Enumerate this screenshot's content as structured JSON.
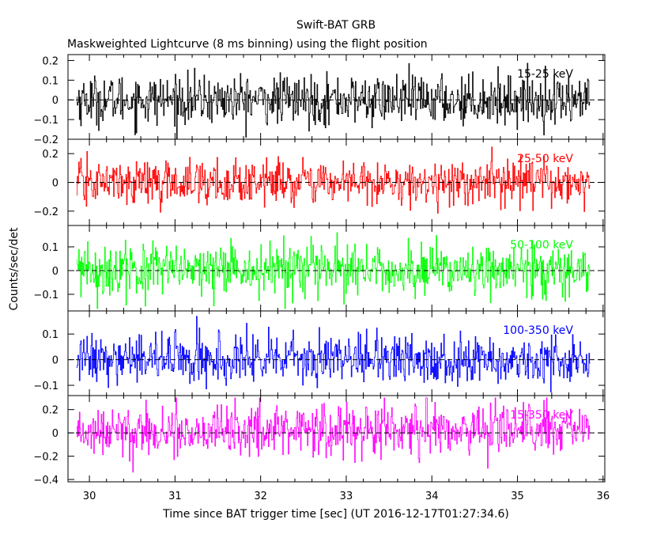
{
  "chart_data": {
    "type": "line",
    "title": "Swift-BAT GRB",
    "subtitle": "Maskweighted Lightcurve (8 ms binning) using the flight position",
    "xlabel": "Time since BAT trigger time [sec] (UT 2016-12-17T01:27:34.6)",
    "ylabel": "Counts/sec/det",
    "xlim": [
      29.75,
      36.02
    ],
    "x_ticks": [
      "30",
      "31",
      "32",
      "33",
      "34",
      "35",
      "36"
    ],
    "bin_width_s": 0.008,
    "x_range_data": [
      29.85,
      35.85
    ],
    "grid": false,
    "zero_line": "dashed",
    "panels": [
      {
        "label": "15-25 keV",
        "color": "#000000",
        "ylim": [
          -0.2,
          0.23
        ],
        "y_ticks": [
          "0.2",
          "0.1",
          "0",
          "−0.1",
          "−0.2"
        ],
        "y_tick_values": [
          0.2,
          0.1,
          0,
          -0.1,
          -0.2
        ],
        "mean": 0.0,
        "sigma": 0.062,
        "approx_min": -0.2,
        "approx_max": 0.22
      },
      {
        "label": "25-50 keV",
        "color": "#ff0000",
        "ylim": [
          -0.3,
          0.3
        ],
        "y_ticks": [
          "0.2",
          "0",
          "−0.2"
        ],
        "y_tick_values": [
          0.2,
          0,
          -0.2
        ],
        "mean": 0.0,
        "sigma": 0.075,
        "approx_min": -0.28,
        "approx_max": 0.28
      },
      {
        "label": "50-100 keV",
        "color": "#00ff00",
        "ylim": [
          -0.17,
          0.19
        ],
        "y_ticks": [
          "0.1",
          "0",
          "−0.1"
        ],
        "y_tick_values": [
          0.1,
          0,
          -0.1
        ],
        "mean": 0.0,
        "sigma": 0.055,
        "approx_min": -0.16,
        "approx_max": 0.18
      },
      {
        "label": "100-350 keV",
        "color": "#0000ff",
        "ylim": [
          -0.14,
          0.19
        ],
        "y_ticks": [
          "0.1",
          "0",
          "−0.1"
        ],
        "y_tick_values": [
          0.1,
          0,
          -0.1
        ],
        "mean": 0.0,
        "sigma": 0.048,
        "approx_min": -0.13,
        "approx_max": 0.18
      },
      {
        "label": "15-350 keV",
        "color": "#ff00ff",
        "ylim": [
          -0.42,
          0.32
        ],
        "y_ticks": [
          "0.2",
          "0",
          "−0.2",
          "−0.4"
        ],
        "y_tick_values": [
          0.2,
          0,
          -0.2,
          -0.4
        ],
        "mean": 0.02,
        "sigma": 0.11,
        "approx_min": -0.4,
        "approx_max": 0.3
      }
    ]
  }
}
